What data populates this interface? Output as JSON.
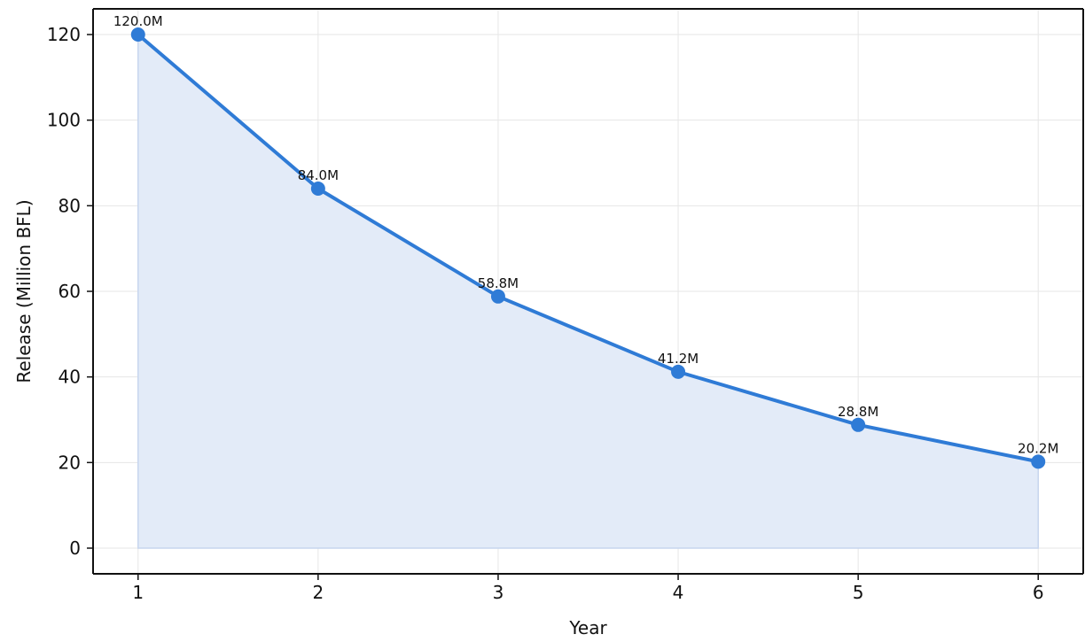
{
  "chart_data": {
    "type": "area",
    "title": "",
    "xlabel": "Year",
    "ylabel": "Release (Million BFL)",
    "x": [
      1,
      2,
      3,
      4,
      5,
      6
    ],
    "series": [
      {
        "values": [
          120.0,
          84.0,
          58.8,
          41.2,
          28.8,
          20.2
        ],
        "labels": [
          "120.0M",
          "84.0M",
          "58.8M",
          "41.2M",
          "28.8M",
          "20.2M"
        ]
      }
    ],
    "xticks": [
      "1",
      "2",
      "3",
      "4",
      "5",
      "6"
    ],
    "yticks": [
      "0",
      "20",
      "40",
      "60",
      "80",
      "100",
      "120"
    ],
    "xlim": [
      0.75,
      6.25
    ],
    "ylim": [
      -6,
      126
    ],
    "grid": true,
    "colors": {
      "line": "#2f7bd6",
      "fill": "#e3ebf8",
      "fill_edge": "#c7d6ee"
    }
  }
}
